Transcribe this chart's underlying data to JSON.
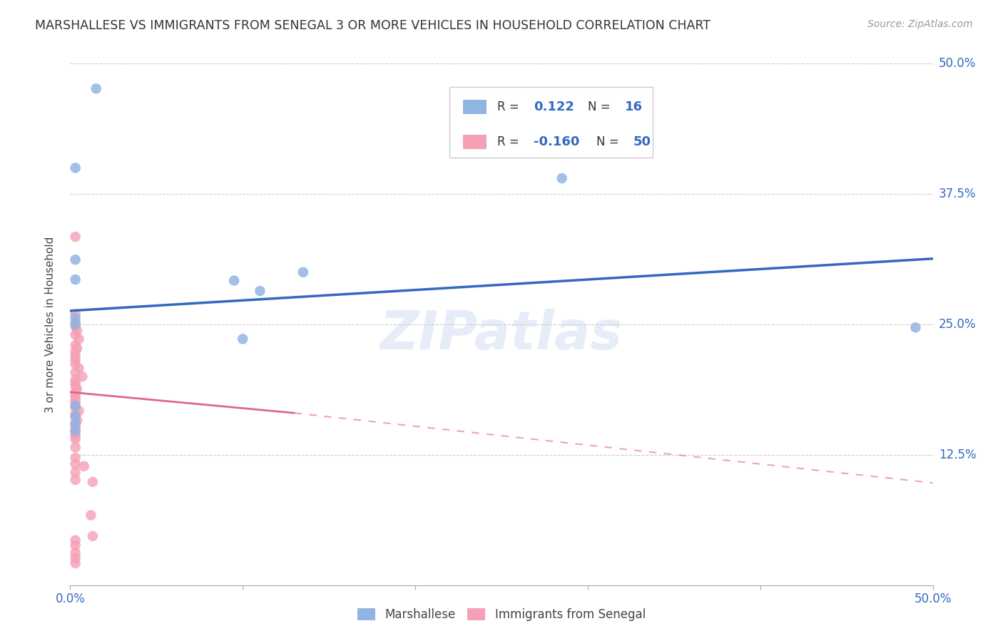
{
  "title": "MARSHALLESE VS IMMIGRANTS FROM SENEGAL 3 OR MORE VEHICLES IN HOUSEHOLD CORRELATION CHART",
  "source": "Source: ZipAtlas.com",
  "ylabel": "3 or more Vehicles in Household",
  "legend_label1": "Marshallese",
  "legend_label2": "Immigrants from Senegal",
  "r1": 0.122,
  "n1": 16,
  "r2": -0.16,
  "n2": 50,
  "xlim": [
    0.0,
    0.5
  ],
  "ylim": [
    0.0,
    0.5
  ],
  "blue_color": "#92b4e3",
  "pink_color": "#f4a0b5",
  "blue_line_color": "#3468c0",
  "pink_line_color": "#e06888",
  "blue_line": [
    0.0,
    0.263,
    0.5,
    0.313
  ],
  "pink_line_solid": [
    0.0,
    0.185,
    0.13,
    0.165
  ],
  "pink_line_dash": [
    0.13,
    0.165,
    0.5,
    0.098
  ],
  "blue_scatter": [
    [
      0.015,
      0.476
    ],
    [
      0.003,
      0.4
    ],
    [
      0.285,
      0.39
    ],
    [
      0.003,
      0.312
    ],
    [
      0.003,
      0.293
    ],
    [
      0.095,
      0.292
    ],
    [
      0.11,
      0.282
    ],
    [
      0.135,
      0.3
    ],
    [
      0.003,
      0.256
    ],
    [
      0.003,
      0.25
    ],
    [
      0.1,
      0.236
    ],
    [
      0.003,
      0.172
    ],
    [
      0.003,
      0.162
    ],
    [
      0.003,
      0.155
    ],
    [
      0.49,
      0.247
    ],
    [
      0.003,
      0.148
    ]
  ],
  "pink_scatter": [
    [
      0.003,
      0.334
    ],
    [
      0.003,
      0.26
    ],
    [
      0.003,
      0.252
    ],
    [
      0.003,
      0.248
    ],
    [
      0.004,
      0.244
    ],
    [
      0.003,
      0.24
    ],
    [
      0.005,
      0.236
    ],
    [
      0.003,
      0.23
    ],
    [
      0.004,
      0.227
    ],
    [
      0.003,
      0.224
    ],
    [
      0.003,
      0.22
    ],
    [
      0.003,
      0.216
    ],
    [
      0.003,
      0.212
    ],
    [
      0.005,
      0.208
    ],
    [
      0.003,
      0.204
    ],
    [
      0.007,
      0.2
    ],
    [
      0.003,
      0.197
    ],
    [
      0.003,
      0.194
    ],
    [
      0.003,
      0.191
    ],
    [
      0.004,
      0.188
    ],
    [
      0.003,
      0.185
    ],
    [
      0.003,
      0.182
    ],
    [
      0.003,
      0.179
    ],
    [
      0.003,
      0.176
    ],
    [
      0.003,
      0.173
    ],
    [
      0.003,
      0.17
    ],
    [
      0.005,
      0.167
    ],
    [
      0.003,
      0.164
    ],
    [
      0.003,
      0.161
    ],
    [
      0.004,
      0.158
    ],
    [
      0.003,
      0.155
    ],
    [
      0.003,
      0.152
    ],
    [
      0.003,
      0.149
    ],
    [
      0.003,
      0.146
    ],
    [
      0.003,
      0.143
    ],
    [
      0.003,
      0.14
    ],
    [
      0.003,
      0.132
    ],
    [
      0.003,
      0.122
    ],
    [
      0.003,
      0.116
    ],
    [
      0.008,
      0.114
    ],
    [
      0.003,
      0.108
    ],
    [
      0.003,
      0.101
    ],
    [
      0.013,
      0.099
    ],
    [
      0.012,
      0.067
    ],
    [
      0.013,
      0.047
    ],
    [
      0.003,
      0.043
    ],
    [
      0.003,
      0.038
    ],
    [
      0.003,
      0.031
    ],
    [
      0.003,
      0.026
    ],
    [
      0.003,
      0.021
    ]
  ],
  "watermark": "ZIPatlas",
  "background_color": "#ffffff"
}
